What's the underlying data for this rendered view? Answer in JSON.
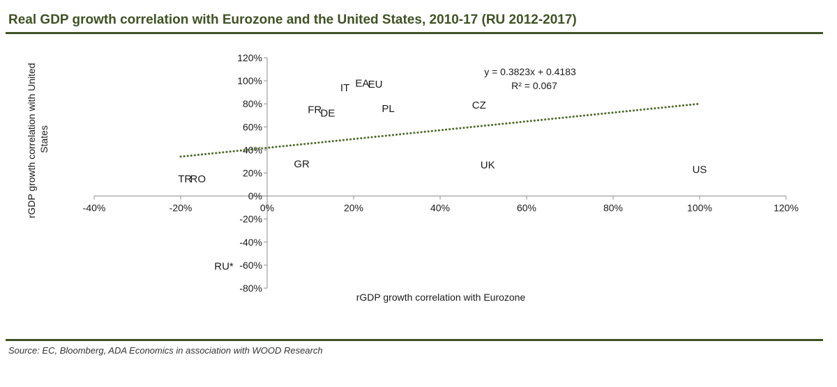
{
  "title": "Real GDP growth correlation with Eurozone and the United States, 2010-17 (RU 2012-2017)",
  "source": "Source: EC, Bloomberg, ADA Economics in association with WOOD Research",
  "colors": {
    "accent": "#3f5224",
    "trendline": "#4e6b2a",
    "axis": "#8c8c8c"
  },
  "chart_data": {
    "type": "scatter",
    "xlabel": "rGDP growth correlation with Eurozone",
    "ylabel": "rGDP growth correlation with United States",
    "xlim": [
      -40,
      120
    ],
    "ylim": [
      -80,
      120
    ],
    "x_ticks": [
      "-40%",
      "-20%",
      "0%",
      "20%",
      "40%",
      "60%",
      "80%",
      "100%",
      "120%"
    ],
    "y_ticks": [
      "120%",
      "100%",
      "80%",
      "60%",
      "40%",
      "20%",
      "0%",
      "-20%",
      "-40%",
      "-60%",
      "-80%"
    ],
    "grid": false,
    "points": [
      {
        "label": "IT",
        "x": 18,
        "y": 94
      },
      {
        "label": "EA",
        "x": 22,
        "y": 98
      },
      {
        "label": "EU",
        "x": 25,
        "y": 97
      },
      {
        "label": "FR",
        "x": 11,
        "y": 75
      },
      {
        "label": "DE",
        "x": 14,
        "y": 72
      },
      {
        "label": "PL",
        "x": 28,
        "y": 76
      },
      {
        "label": "CZ",
        "x": 49,
        "y": 79
      },
      {
        "label": "GR",
        "x": 8,
        "y": 28
      },
      {
        "label": "UK",
        "x": 51,
        "y": 27
      },
      {
        "label": "US",
        "x": 100,
        "y": 23
      },
      {
        "label": "TR",
        "x": -19,
        "y": 15
      },
      {
        "label": "RO",
        "x": -16,
        "y": 15
      },
      {
        "label": "RU*",
        "x": -10,
        "y": -61
      }
    ],
    "trendline": {
      "equation": "y = 0.3823x + 0.4183",
      "r_squared": "R² = 0.067",
      "slope": 0.3823,
      "intercept": 0.4183,
      "x_range": [
        -20,
        100
      ],
      "style": "dotted"
    }
  }
}
